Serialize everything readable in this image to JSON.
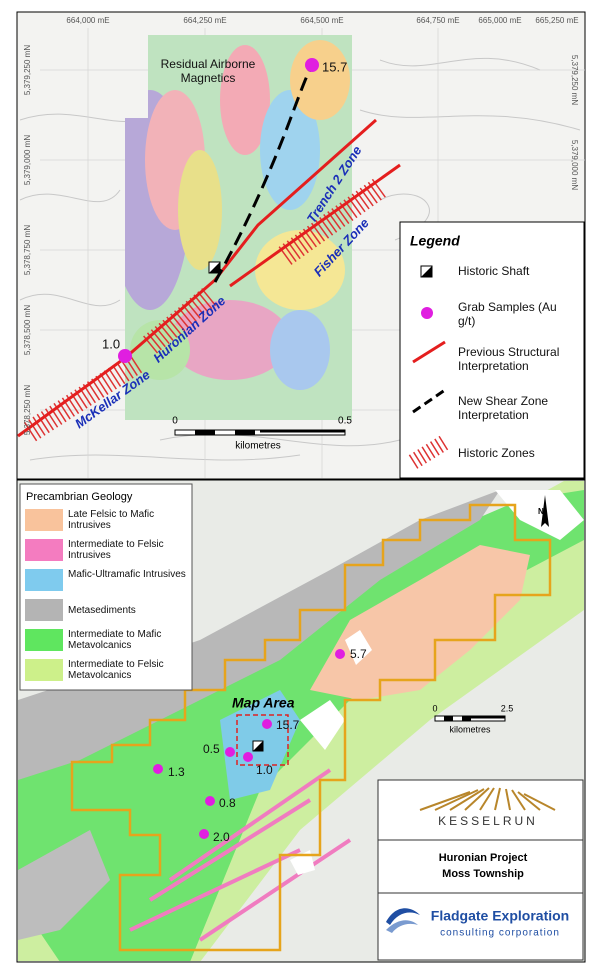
{
  "top_map": {
    "x_axis_labels": [
      "664,000 mE",
      "664,250 mE",
      "664,500 mE",
      "664,750 mE",
      "665,000 mE",
      "665,250 mE"
    ],
    "y_axis_labels_left": [
      "5,379,250 mN",
      "5,379,000 mN",
      "5,378,750 mN",
      "5,378,500 mN",
      "5,378,250 mN"
    ],
    "y_axis_labels_right": [
      "5,379,250 mN",
      "5,379,000 mN"
    ],
    "title": "Residual Airborne Magnetics",
    "samples": [
      "15.7",
      "1.0"
    ],
    "zones": [
      "Trench 2 Zone",
      "Fisher Zone",
      "Huronian Zone",
      "McKellar Zone"
    ],
    "scale": {
      "ticks": [
        "0",
        "0.5"
      ],
      "unit": "kilometres"
    },
    "legend": {
      "title": "Legend",
      "items": [
        "Historic Shaft",
        "Grab Samples (Au g/t)",
        "Previous Structural Interpretation",
        "New Shear Zone Interpretation",
        "Historic Zones"
      ]
    }
  },
  "bottom_map": {
    "geology_legend": {
      "title": "Precambrian Geology",
      "units": [
        "Late Felsic to Mafic Intrusives",
        "Intermediate to Felsic Intrusives",
        "Mafic-Ultramafic Intrusives",
        "Metasediments",
        "Intermediate to Mafic Metavolcanics",
        "Intermediate to Felsic Metavolcanics"
      ]
    },
    "map_area_label": "Map Area",
    "samples": [
      "5.7",
      "15.7",
      "0.5",
      "1.0",
      "1.3",
      "0.8",
      "2.0"
    ],
    "north": "N",
    "scale": {
      "ticks": [
        "0",
        "2.5"
      ],
      "unit": "kilometres"
    },
    "company_logo": "KESSELRUN",
    "project": {
      "name": "Huronian Project",
      "township": "Moss Township"
    },
    "consultant": {
      "name": "Fladgate Exploration",
      "tagline": "consulting corporation"
    }
  }
}
